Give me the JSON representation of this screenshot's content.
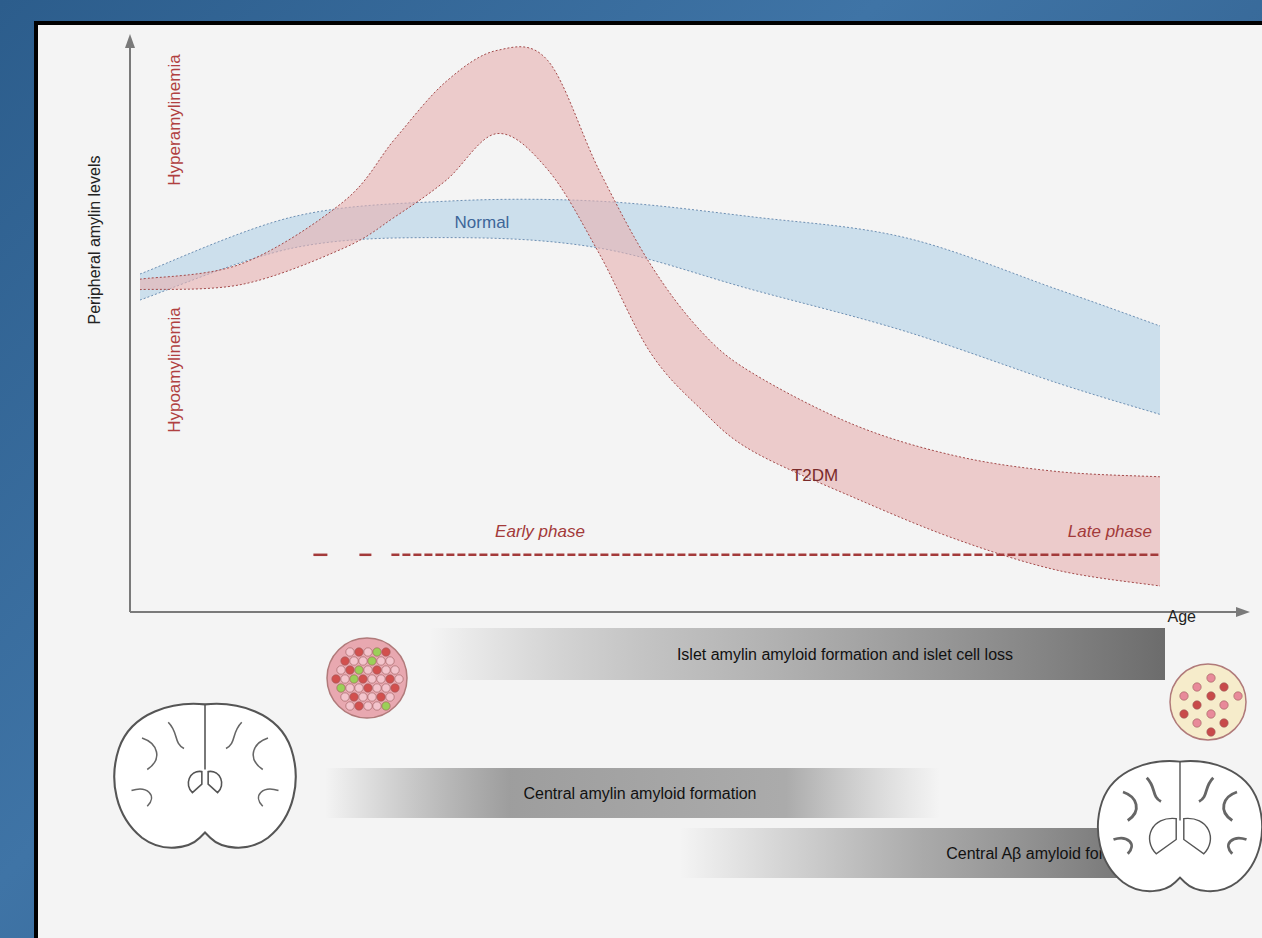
{
  "chart_data": {
    "type": "area",
    "y_label": "Peripheral amylin levels",
    "x_label": "Age",
    "xlim": [
      0,
      100
    ],
    "ylim": [
      0,
      110
    ],
    "tick_labels": false,
    "series": [
      {
        "name": "Normal",
        "color": "#c4daea",
        "x": [
          0,
          15,
          30,
          45,
          60,
          75,
          90,
          100
        ],
        "high": [
          65,
          76,
          79,
          79,
          76,
          72,
          62,
          55
        ],
        "low": [
          60,
          70,
          72,
          70,
          62,
          54,
          44,
          38
        ]
      },
      {
        "name": "T2DM",
        "color": "#e7b1b1",
        "x": [
          0,
          10,
          20,
          25,
          30,
          35,
          40,
          45,
          50,
          55,
          60,
          70,
          80,
          90,
          100
        ],
        "high": [
          64,
          67,
          79,
          91,
          102,
          108,
          106,
          85,
          67,
          54,
          46,
          36,
          30,
          27,
          26
        ],
        "low": [
          62,
          63,
          70,
          76,
          83,
          92,
          85,
          69,
          50,
          39,
          31,
          22,
          14,
          8,
          5
        ]
      }
    ],
    "high_label": "Hyperamylinemia",
    "low_label": "Hypoamylinemia",
    "phase_line": {
      "y": 11,
      "from": 17,
      "to": 100,
      "labels": [
        "Early phase",
        "Late phase"
      ]
    },
    "stages": [
      "Islet amylin amyloid formation and islet cell loss",
      "Central amylin amyloid formation",
      "Central Aβ amyloid formation"
    ]
  }
}
